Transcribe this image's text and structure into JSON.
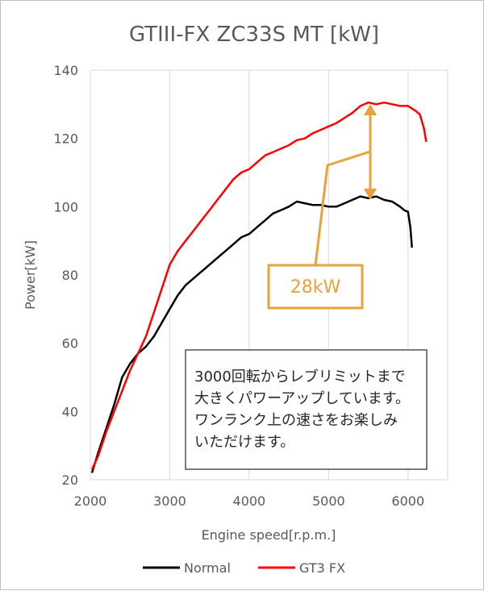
{
  "chart_data": {
    "type": "line",
    "title": "GTIII-FX ZC33S MT [kW]",
    "xlabel": "Engine speed[r.p.m.]",
    "ylabel": "Power[kW]",
    "xlim": [
      2000,
      6500
    ],
    "ylim": [
      20,
      140
    ],
    "x_ticks": [
      "2000",
      "3000",
      "4000",
      "5000",
      "6000"
    ],
    "y_ticks": [
      "20",
      "40",
      "60",
      "80",
      "100",
      "120",
      "140"
    ],
    "grid": "vertical",
    "legend_position": "bottom",
    "series": [
      {
        "name": "Normal",
        "color": "#000000",
        "points": [
          [
            2020,
            22
          ],
          [
            2100,
            28
          ],
          [
            2200,
            35
          ],
          [
            2300,
            42
          ],
          [
            2400,
            50
          ],
          [
            2500,
            54
          ],
          [
            2600,
            57
          ],
          [
            2700,
            59
          ],
          [
            2800,
            62
          ],
          [
            2900,
            66
          ],
          [
            3000,
            70
          ],
          [
            3100,
            74
          ],
          [
            3200,
            77
          ],
          [
            3300,
            79
          ],
          [
            3400,
            81
          ],
          [
            3500,
            83
          ],
          [
            3600,
            85
          ],
          [
            3700,
            87
          ],
          [
            3800,
            89
          ],
          [
            3900,
            91
          ],
          [
            4000,
            92
          ],
          [
            4100,
            94
          ],
          [
            4200,
            96
          ],
          [
            4300,
            98
          ],
          [
            4400,
            99
          ],
          [
            4500,
            100
          ],
          [
            4600,
            101.5
          ],
          [
            4700,
            101
          ],
          [
            4800,
            100.5
          ],
          [
            4900,
            100.5
          ],
          [
            5000,
            100
          ],
          [
            5100,
            100
          ],
          [
            5200,
            101
          ],
          [
            5300,
            102
          ],
          [
            5400,
            103
          ],
          [
            5500,
            102.5
          ],
          [
            5600,
            103
          ],
          [
            5700,
            102
          ],
          [
            5800,
            101.5
          ],
          [
            5900,
            100
          ],
          [
            5950,
            99
          ],
          [
            6000,
            98.5
          ],
          [
            6030,
            94
          ],
          [
            6050,
            88
          ]
        ]
      },
      {
        "name": "GT3 FX",
        "color": "#ff0000",
        "points": [
          [
            2020,
            23
          ],
          [
            2100,
            27
          ],
          [
            2200,
            34
          ],
          [
            2300,
            40
          ],
          [
            2400,
            46
          ],
          [
            2500,
            52
          ],
          [
            2600,
            57
          ],
          [
            2700,
            62
          ],
          [
            2800,
            69
          ],
          [
            2900,
            76
          ],
          [
            3000,
            83
          ],
          [
            3100,
            87
          ],
          [
            3200,
            90
          ],
          [
            3300,
            93
          ],
          [
            3400,
            96
          ],
          [
            3500,
            99
          ],
          [
            3600,
            102
          ],
          [
            3700,
            105
          ],
          [
            3800,
            108
          ],
          [
            3900,
            110
          ],
          [
            4000,
            111
          ],
          [
            4100,
            113
          ],
          [
            4200,
            115
          ],
          [
            4300,
            116
          ],
          [
            4400,
            117
          ],
          [
            4500,
            118
          ],
          [
            4600,
            119.5
          ],
          [
            4700,
            120
          ],
          [
            4800,
            121.5
          ],
          [
            4900,
            122.5
          ],
          [
            5000,
            123.5
          ],
          [
            5100,
            124.5
          ],
          [
            5200,
            126
          ],
          [
            5300,
            127.5
          ],
          [
            5400,
            129.5
          ],
          [
            5500,
            130.5
          ],
          [
            5600,
            130
          ],
          [
            5700,
            130.5
          ],
          [
            5800,
            130
          ],
          [
            5900,
            129.5
          ],
          [
            6000,
            129.5
          ],
          [
            6100,
            128
          ],
          [
            6150,
            127
          ],
          [
            6200,
            123
          ],
          [
            6230,
            119
          ]
        ]
      }
    ],
    "annotations": [
      {
        "text": "28kW"
      },
      {
        "text": "3000回転からレブリミットまで\n大きくパワーアップしています。\nワンランク上の速さをお楽しみ\nいただけます。"
      }
    ]
  },
  "colors": {
    "grid": "#d9d9d9",
    "callout": "#e9a23b",
    "text": "#595959"
  }
}
